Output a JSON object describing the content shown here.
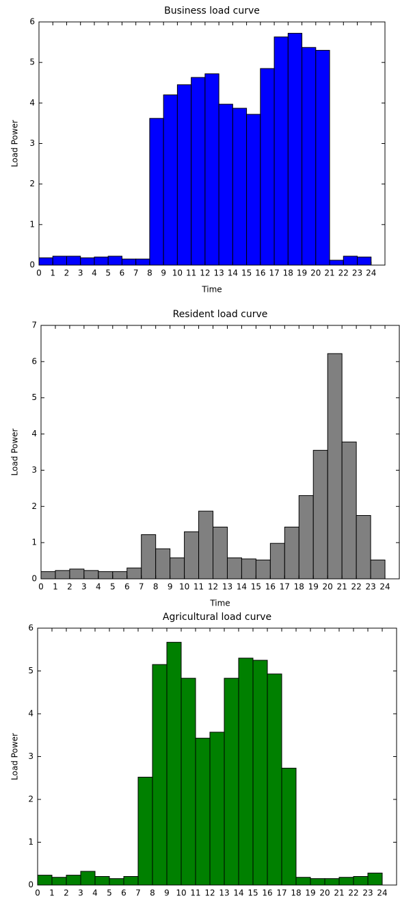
{
  "chart_data": [
    {
      "type": "histogram",
      "title": "Business load curve",
      "xlabel": "Time",
      "ylabel": "Load Power",
      "color": "#0000ff",
      "bins": [
        0,
        1,
        2,
        3,
        4,
        5,
        6,
        7,
        8,
        9,
        10,
        11,
        12,
        13,
        14,
        15,
        16,
        17,
        18,
        19,
        20,
        21,
        22,
        23,
        24
      ],
      "values": [
        0.18,
        0.22,
        0.22,
        0.18,
        0.2,
        0.22,
        0.15,
        0.15,
        3.62,
        4.2,
        4.45,
        4.63,
        4.72,
        3.97,
        3.87,
        3.72,
        4.85,
        5.63,
        5.72,
        5.37,
        5.3,
        0.12,
        0.22,
        0.2
      ],
      "xlim": [
        0,
        25
      ],
      "xticks": [
        0,
        1,
        2,
        3,
        4,
        5,
        6,
        7,
        8,
        9,
        10,
        11,
        12,
        13,
        14,
        15,
        16,
        17,
        18,
        19,
        20,
        21,
        22,
        23,
        24
      ],
      "ylim": [
        0,
        6
      ],
      "yticks": [
        0,
        1,
        2,
        3,
        4,
        5,
        6
      ]
    },
    {
      "type": "histogram",
      "title": "Resident load curve",
      "xlabel": "Time",
      "ylabel": "Load Power",
      "color": "#808080",
      "bins": [
        0,
        1,
        2,
        3,
        4,
        5,
        6,
        7,
        8,
        9,
        10,
        11,
        12,
        13,
        14,
        15,
        16,
        17,
        18,
        19,
        20,
        21,
        22,
        23,
        24
      ],
      "values": [
        0.2,
        0.23,
        0.27,
        0.23,
        0.2,
        0.2,
        0.3,
        1.22,
        0.83,
        0.58,
        1.3,
        1.87,
        1.43,
        0.58,
        0.55,
        0.52,
        0.98,
        1.43,
        2.3,
        3.55,
        6.22,
        3.78,
        1.75,
        0.52
      ],
      "xlim": [
        0,
        25
      ],
      "xticks": [
        0,
        1,
        2,
        3,
        4,
        5,
        6,
        7,
        8,
        9,
        10,
        11,
        12,
        13,
        14,
        15,
        16,
        17,
        18,
        19,
        20,
        21,
        22,
        23,
        24
      ],
      "ylim": [
        0,
        7
      ],
      "yticks": [
        0,
        1,
        2,
        3,
        4,
        5,
        6,
        7
      ]
    },
    {
      "type": "histogram",
      "title": "Agricultural load curve",
      "ylabel": "Load Power",
      "color": "#008000",
      "bins": [
        0,
        1,
        2,
        3,
        4,
        5,
        6,
        7,
        8,
        9,
        10,
        11,
        12,
        13,
        14,
        15,
        16,
        17,
        18,
        19,
        20,
        21,
        22,
        23,
        24
      ],
      "values": [
        0.23,
        0.18,
        0.23,
        0.32,
        0.2,
        0.15,
        0.2,
        2.52,
        5.15,
        5.67,
        4.83,
        3.43,
        3.57,
        4.83,
        5.3,
        5.25,
        4.93,
        2.73,
        0.18,
        0.15,
        0.15,
        0.18,
        0.2,
        0.28
      ],
      "xlim": [
        0,
        25
      ],
      "xticks": [
        0,
        1,
        2,
        3,
        4,
        5,
        6,
        7,
        8,
        9,
        10,
        11,
        12,
        13,
        14,
        15,
        16,
        17,
        18,
        19,
        20,
        21,
        22,
        23,
        24
      ],
      "ylim": [
        0,
        6
      ],
      "yticks": [
        0,
        1,
        2,
        3,
        4,
        5,
        6
      ]
    }
  ]
}
